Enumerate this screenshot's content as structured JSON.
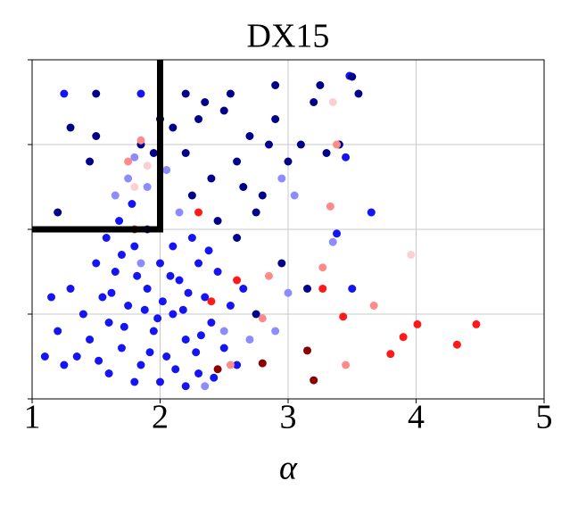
{
  "chart_data": {
    "type": "scatter",
    "title": "DX15",
    "x_label": "α",
    "xlim": [
      1,
      5
    ],
    "xticks": [
      1,
      2,
      3,
      4,
      5
    ],
    "ylim": [
      0,
      4
    ],
    "yticks": [
      0,
      1,
      2,
      3,
      4
    ],
    "grid": true,
    "threshold": {
      "x": 2,
      "y": 2,
      "color": "#000000"
    },
    "series": [
      {
        "color": "#8c8cff",
        "x": [
          1.75,
          1.8,
          1.9,
          2.05,
          1.65,
          2.15,
          1.85,
          2.5,
          2.7,
          2.9,
          2.35,
          3.0,
          3.35,
          3.65,
          2.95,
          3.05
        ],
        "y": [
          2.6,
          2.85,
          2.5,
          2.7,
          2.4,
          2.2,
          1.6,
          0.8,
          0.7,
          0.8,
          0.15,
          1.25,
          1.85,
          2.2,
          2.6,
          2.4
        ]
      },
      {
        "color": "#1414f5",
        "x": [
          1.55,
          1.6,
          1.65,
          1.7,
          1.75,
          1.8,
          1.85,
          1.9,
          1.95,
          2.0,
          2.05,
          2.1,
          2.15,
          2.2,
          2.25,
          2.3,
          2.35,
          2.4,
          2.45,
          2.5,
          1.45,
          1.5,
          1.4,
          1.35,
          1.6,
          1.7,
          1.8,
          1.9,
          2.0,
          2.1,
          2.2,
          2.3,
          2.55,
          2.6,
          2.65,
          1.52,
          1.62,
          1.72,
          1.82,
          1.92,
          2.02,
          2.12,
          2.22,
          2.32,
          2.42,
          1.68,
          1.78,
          1.58,
          1.88,
          1.98,
          2.08,
          2.18,
          2.28,
          2.38,
          1.3,
          1.2,
          1.15,
          1.25,
          1.1,
          1.25,
          1.85,
          3.48,
          3.5,
          3.45,
          3.38,
          3.65
        ],
        "y": [
          1.2,
          0.9,
          1.5,
          0.6,
          1.1,
          1.8,
          0.4,
          1.3,
          0.8,
          1.6,
          0.5,
          1.0,
          1.4,
          0.7,
          1.9,
          0.3,
          1.2,
          0.9,
          1.5,
          0.6,
          0.7,
          1.6,
          1.0,
          0.5,
          0.3,
          1.7,
          0.2,
          2.0,
          0.2,
          1.8,
          0.15,
          1.6,
          1.1,
          0.4,
          1.3,
          0.45,
          1.25,
          0.85,
          1.45,
          0.55,
          1.15,
          0.35,
          1.25,
          0.75,
          0.25,
          2.1,
          2.3,
          1.9,
          1.05,
          0.95,
          1.45,
          1.05,
          0.55,
          1.75,
          1.3,
          0.8,
          1.2,
          0.4,
          0.5,
          3.6,
          3.6,
          3.81,
          1.3,
          2.85,
          1.95,
          2.2
        ]
      },
      {
        "color": "#00008b",
        "x": [
          2.1,
          2.2,
          2.3,
          2.4,
          2.5,
          2.6,
          2.7,
          2.8,
          2.9,
          3.0,
          2.55,
          2.65,
          2.75,
          2.85,
          2.45,
          2.35,
          3.1,
          3.2,
          3.3,
          3.4,
          2.2,
          2.0,
          1.85,
          1.5,
          1.3,
          1.2,
          1.5,
          3.25,
          3.55,
          2.25,
          2.6,
          2.95,
          3.15,
          2.75,
          1.95,
          1.45,
          3.5,
          2.9
        ],
        "y": [
          3.2,
          2.9,
          3.3,
          2.6,
          3.4,
          2.8,
          3.1,
          2.4,
          3.3,
          2.8,
          3.6,
          2.5,
          2.2,
          3.0,
          2.1,
          3.5,
          3.0,
          3.5,
          2.9,
          3.0,
          3.6,
          3.3,
          3.0,
          3.1,
          3.2,
          2.2,
          3.6,
          3.7,
          3.6,
          2.4,
          1.9,
          1.6,
          1.3,
          1.0,
          2.9,
          2.8,
          3.8,
          3.7
        ]
      },
      {
        "color": "#fbd0d0",
        "x": [
          3.96,
          3.35,
          1.8,
          1.9
        ],
        "y": [
          1.7,
          3.5,
          2.5,
          2.75
        ]
      },
      {
        "color": "#ff8a8a",
        "x": [
          3.45,
          1.85,
          1.75,
          2.85,
          2.8,
          2.55,
          3.38,
          3.33,
          3.67,
          3.27
        ],
        "y": [
          0.4,
          3.05,
          2.8,
          1.45,
          0.95,
          0.4,
          3.0,
          2.27,
          1.1,
          1.55
        ]
      },
      {
        "color": "#ff1a1a",
        "x": [
          3.27,
          3.43,
          4.01,
          3.9,
          4.32,
          4.47,
          3.8,
          2.6,
          2.3,
          2.4,
          1.8
        ],
        "y": [
          1.3,
          0.97,
          0.88,
          0.73,
          0.64,
          0.88,
          0.53,
          1.4,
          2.2,
          1.15,
          2.0
        ]
      },
      {
        "color": "#8b0000",
        "x": [
          3.2,
          2.8,
          2.45,
          3.15
        ],
        "y": [
          0.22,
          0.42,
          0.35,
          0.57
        ]
      }
    ]
  }
}
